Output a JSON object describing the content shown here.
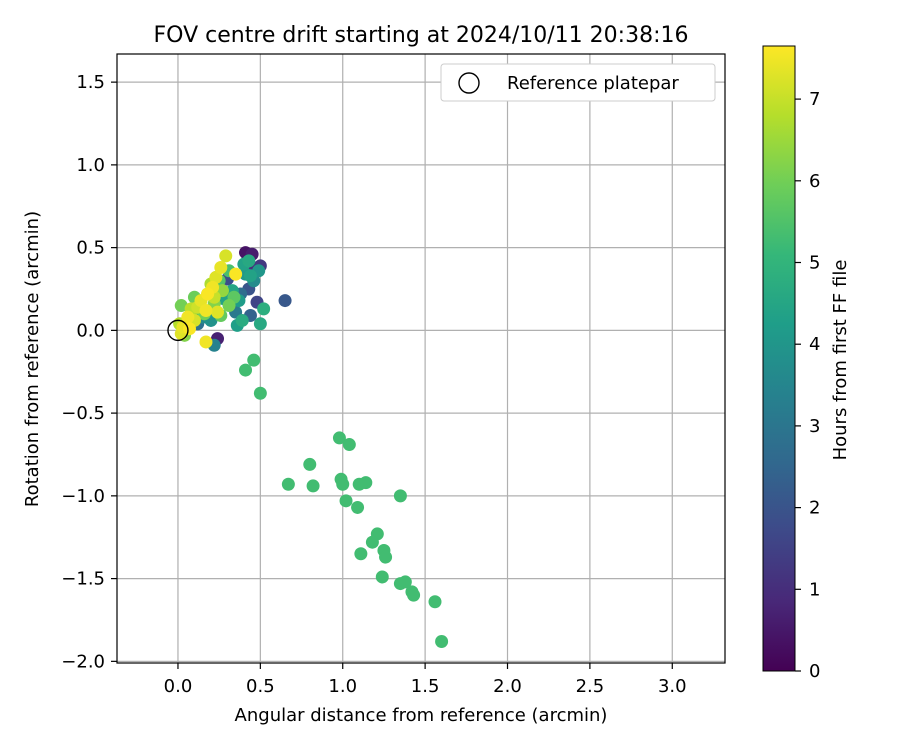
{
  "chart_data": {
    "type": "scatter",
    "title": "FOV centre drift starting at 2024/10/11 20:38:16",
    "xlabel": "Angular distance from reference (arcmin)",
    "ylabel": "Rotation from reference (arcmin)",
    "xlim": [
      -0.37,
      3.32
    ],
    "ylim": [
      -2.01,
      1.67
    ],
    "xticks": [
      0.0,
      0.5,
      1.0,
      1.5,
      2.0,
      2.5,
      3.0
    ],
    "xtick_labels": [
      "0.0",
      "0.5",
      "1.0",
      "1.5",
      "2.0",
      "2.5",
      "3.0"
    ],
    "yticks": [
      1.5,
      1.0,
      0.5,
      0.0,
      -0.5,
      -1.0,
      -1.5,
      -2.0
    ],
    "ytick_labels": [
      "1.5",
      "1.0",
      "0.5",
      "0.0",
      "−0.5",
      "−1.0",
      "−1.5",
      "−2.0"
    ],
    "grid": true,
    "legend": {
      "position": "top-right",
      "entries": [
        {
          "label": "Reference platepar",
          "marker": "open-circle"
        }
      ]
    },
    "reference_point": {
      "x": 0.0,
      "y": 0.0
    },
    "colorbar": {
      "label": "Hours from first FF file",
      "colormap": "viridis",
      "range": [
        0,
        7.65
      ],
      "ticks": [
        0,
        1,
        2,
        3,
        4,
        5,
        6,
        7
      ],
      "tick_labels": [
        "0",
        "1",
        "2",
        "3",
        "4",
        "5",
        "6",
        "7"
      ],
      "colors": [
        "#440154",
        "#482878",
        "#3e4989",
        "#31688e",
        "#26828e",
        "#1f9e89",
        "#35b779",
        "#6ece58",
        "#b5de2b",
        "#fde725"
      ]
    },
    "points": [
      {
        "x": 0.41,
        "y": 0.47,
        "c": 0.4
      },
      {
        "x": 0.45,
        "y": 0.46,
        "c": 0.6
      },
      {
        "x": 0.5,
        "y": 0.39,
        "c": 1.3
      },
      {
        "x": 0.45,
        "y": 0.38,
        "c": 1.0
      },
      {
        "x": 0.48,
        "y": 0.17,
        "c": 1.6
      },
      {
        "x": 0.65,
        "y": 0.18,
        "c": 2.1
      },
      {
        "x": 0.44,
        "y": 0.09,
        "c": 2.4
      },
      {
        "x": 0.43,
        "y": 0.25,
        "c": 2.0
      },
      {
        "x": 0.38,
        "y": 0.22,
        "c": 2.7
      },
      {
        "x": 0.35,
        "y": 0.11,
        "c": 3.1
      },
      {
        "x": 0.3,
        "y": 0.31,
        "c": 1.8
      },
      {
        "x": 0.24,
        "y": -0.05,
        "c": 0.7
      },
      {
        "x": 0.22,
        "y": -0.09,
        "c": 3.4
      },
      {
        "x": 0.2,
        "y": 0.06,
        "c": 3.9
      },
      {
        "x": 0.15,
        "y": 0.08,
        "c": 3.6
      },
      {
        "x": 0.12,
        "y": 0.04,
        "c": 2.8
      },
      {
        "x": 0.41,
        "y": 0.34,
        "c": 4.1
      },
      {
        "x": 0.44,
        "y": 0.33,
        "c": 4.4
      },
      {
        "x": 0.46,
        "y": 0.3,
        "c": 3.7
      },
      {
        "x": 0.49,
        "y": 0.36,
        "c": 4.0
      },
      {
        "x": 0.37,
        "y": 0.18,
        "c": 4.2
      },
      {
        "x": 0.33,
        "y": 0.24,
        "c": 4.5
      },
      {
        "x": 0.36,
        "y": 0.03,
        "c": 4.3
      },
      {
        "x": 0.39,
        "y": 0.06,
        "c": 4.7
      },
      {
        "x": 0.5,
        "y": 0.04,
        "c": 4.6
      },
      {
        "x": 0.52,
        "y": 0.13,
        "c": 4.8
      },
      {
        "x": 0.4,
        "y": 0.4,
        "c": 4.4
      },
      {
        "x": 0.43,
        "y": 0.42,
        "c": 4.6
      },
      {
        "x": 0.28,
        "y": 0.19,
        "c": 4.4
      },
      {
        "x": 0.31,
        "y": 0.36,
        "c": 5.4
      },
      {
        "x": 0.25,
        "y": 0.3,
        "c": 5.6
      },
      {
        "x": 0.46,
        "y": -0.18,
        "c": 5.3
      },
      {
        "x": 0.41,
        "y": -0.24,
        "c": 5.3
      },
      {
        "x": 0.5,
        "y": -0.38,
        "c": 5.3
      },
      {
        "x": 0.98,
        "y": -0.65,
        "c": 5.3
      },
      {
        "x": 1.04,
        "y": -0.69,
        "c": 5.3
      },
      {
        "x": 0.8,
        "y": -0.81,
        "c": 5.3
      },
      {
        "x": 0.67,
        "y": -0.93,
        "c": 5.3
      },
      {
        "x": 0.82,
        "y": -0.94,
        "c": 5.3
      },
      {
        "x": 0.99,
        "y": -0.9,
        "c": 5.3
      },
      {
        "x": 1.0,
        "y": -0.93,
        "c": 5.3
      },
      {
        "x": 1.1,
        "y": -0.93,
        "c": 5.3
      },
      {
        "x": 1.14,
        "y": -0.92,
        "c": 5.3
      },
      {
        "x": 1.35,
        "y": -1.0,
        "c": 5.3
      },
      {
        "x": 1.02,
        "y": -1.03,
        "c": 5.3
      },
      {
        "x": 1.09,
        "y": -1.07,
        "c": 5.3
      },
      {
        "x": 1.21,
        "y": -1.23,
        "c": 5.3
      },
      {
        "x": 1.18,
        "y": -1.28,
        "c": 5.3
      },
      {
        "x": 1.25,
        "y": -1.33,
        "c": 5.3
      },
      {
        "x": 1.11,
        "y": -1.35,
        "c": 5.3
      },
      {
        "x": 1.26,
        "y": -1.37,
        "c": 5.3
      },
      {
        "x": 1.24,
        "y": -1.49,
        "c": 5.3
      },
      {
        "x": 1.35,
        "y": -1.53,
        "c": 5.3
      },
      {
        "x": 1.38,
        "y": -1.52,
        "c": 5.3
      },
      {
        "x": 1.42,
        "y": -1.58,
        "c": 5.3
      },
      {
        "x": 1.43,
        "y": -1.6,
        "c": 5.3
      },
      {
        "x": 1.56,
        "y": -1.64,
        "c": 5.3
      },
      {
        "x": 1.6,
        "y": -1.88,
        "c": 5.3
      },
      {
        "x": 0.02,
        "y": 0.15,
        "c": 6.0
      },
      {
        "x": 0.08,
        "y": 0.1,
        "c": 6.3
      },
      {
        "x": 0.1,
        "y": 0.2,
        "c": 5.9
      },
      {
        "x": 0.13,
        "y": 0.15,
        "c": 6.1
      },
      {
        "x": 0.18,
        "y": 0.22,
        "c": 6.5
      },
      {
        "x": 0.22,
        "y": 0.16,
        "c": 6.2
      },
      {
        "x": 0.26,
        "y": 0.09,
        "c": 5.8
      },
      {
        "x": 0.27,
        "y": 0.24,
        "c": 6.4
      },
      {
        "x": 0.31,
        "y": 0.15,
        "c": 6.0
      },
      {
        "x": 0.34,
        "y": 0.2,
        "c": 5.7
      },
      {
        "x": 0.16,
        "y": 0.1,
        "c": 6.0
      },
      {
        "x": 0.05,
        "y": 0.03,
        "c": 6.6
      },
      {
        "x": 0.04,
        "y": -0.03,
        "c": 6.2
      },
      {
        "x": 0.2,
        "y": 0.28,
        "c": 6.7
      },
      {
        "x": 0.29,
        "y": 0.45,
        "c": 7.2
      },
      {
        "x": 0.26,
        "y": 0.38,
        "c": 7.4
      },
      {
        "x": 0.35,
        "y": 0.34,
        "c": 7.6
      },
      {
        "x": 0.23,
        "y": 0.32,
        "c": 7.3
      },
      {
        "x": 0.21,
        "y": 0.26,
        "c": 7.5
      },
      {
        "x": 0.18,
        "y": 0.22,
        "c": 7.6
      },
      {
        "x": 0.14,
        "y": 0.18,
        "c": 7.4
      },
      {
        "x": 0.12,
        "y": 0.14,
        "c": 7.1
      },
      {
        "x": 0.17,
        "y": 0.12,
        "c": 7.5
      },
      {
        "x": 0.24,
        "y": 0.11,
        "c": 7.3
      },
      {
        "x": 0.1,
        "y": 0.06,
        "c": 7.2
      },
      {
        "x": 0.06,
        "y": 0.08,
        "c": 7.5
      },
      {
        "x": 0.07,
        "y": 0.01,
        "c": 7.6
      },
      {
        "x": 0.03,
        "y": 0.02,
        "c": 7.4
      },
      {
        "x": 0.02,
        "y": -0.02,
        "c": 7.3
      },
      {
        "x": 0.17,
        "y": -0.07,
        "c": 7.5
      },
      {
        "x": 0.22,
        "y": 0.2,
        "c": 7.0
      },
      {
        "x": 0.08,
        "y": 0.13,
        "c": 6.9
      },
      {
        "x": 0.01,
        "y": 0.04,
        "c": 6.8
      }
    ]
  }
}
